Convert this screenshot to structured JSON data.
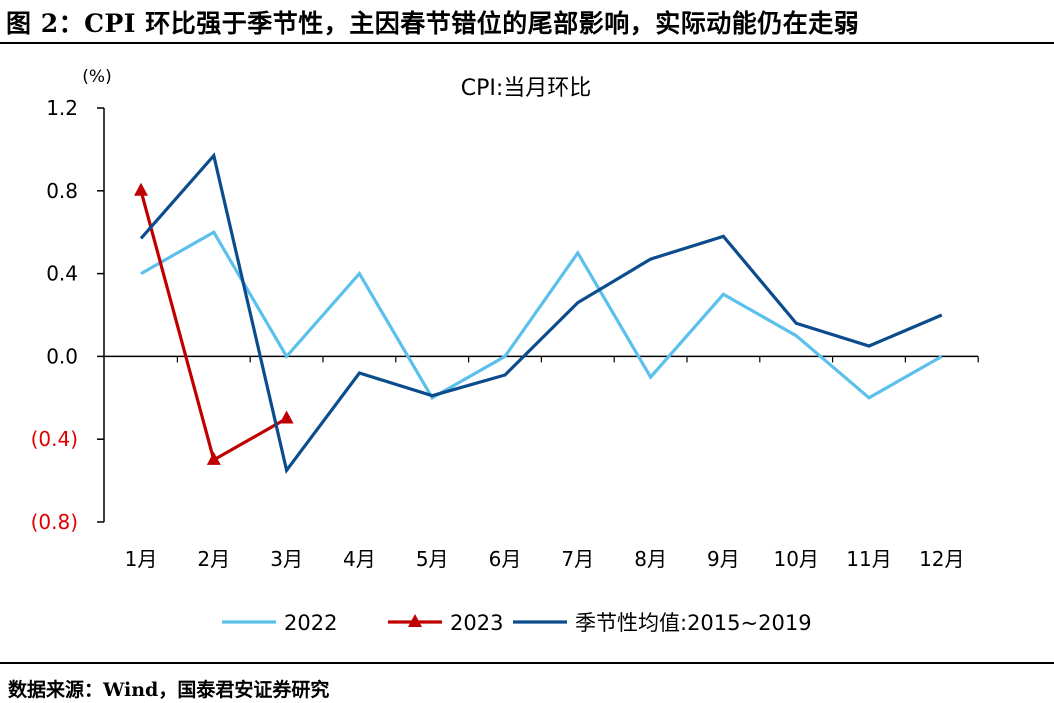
{
  "figure_title": "图 2：CPI 环比强于季节性，主因春节错位的尾部影响，实际动能仍在走弱",
  "source": "数据来源：Wind，国泰君安证券研究",
  "chart_data": {
    "type": "line",
    "title": "CPI:当月环比",
    "ylabel": "(%)",
    "xlabel": "",
    "categories": [
      "1月",
      "2月",
      "3月",
      "4月",
      "5月",
      "6月",
      "7月",
      "8月",
      "9月",
      "10月",
      "11月",
      "12月"
    ],
    "ylim": [
      -0.8,
      1.2
    ],
    "yticks": [
      1.2,
      0.8,
      0.4,
      0.0,
      -0.4,
      -0.8
    ],
    "ytick_labels": [
      "1.2",
      "0.8",
      "0.4",
      "0.0",
      "(0.4)",
      "(0.8)"
    ],
    "negative_tick_color": "#e00000",
    "legend_position": "bottom",
    "series": [
      {
        "name": "2022",
        "color": "#5bc0eb",
        "marker": "none",
        "values": [
          0.4,
          0.6,
          0.0,
          0.4,
          -0.2,
          0.0,
          0.5,
          -0.1,
          0.3,
          0.1,
          -0.2,
          0.0
        ]
      },
      {
        "name": "2023",
        "color": "#c00000",
        "marker": "triangle",
        "values": [
          0.8,
          -0.5,
          -0.3,
          null,
          null,
          null,
          null,
          null,
          null,
          null,
          null,
          null
        ]
      },
      {
        "name": "季节性均值:2015~2019",
        "color": "#0b4d8c",
        "marker": "none",
        "values": [
          0.57,
          0.97,
          -0.55,
          -0.08,
          -0.19,
          -0.09,
          0.26,
          0.47,
          0.58,
          0.16,
          0.05,
          0.2
        ]
      }
    ]
  }
}
